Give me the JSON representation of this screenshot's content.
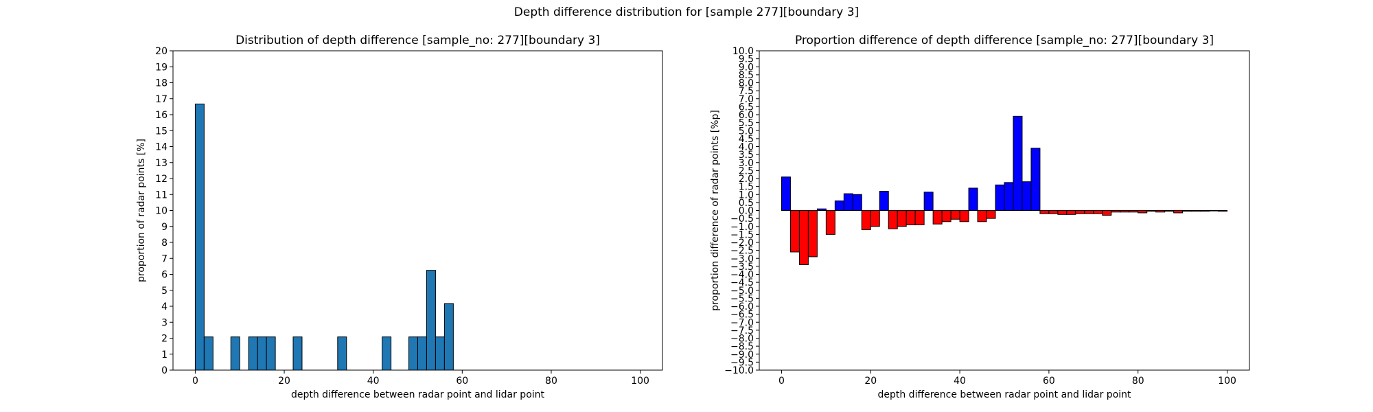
{
  "figure": {
    "suptitle": "Depth difference distribution for [sample 277][boundary 3]"
  },
  "chart_data": [
    {
      "type": "bar",
      "title": "Distribution of depth difference [sample_no: 277][boundary 3]",
      "xlabel": "depth difference between radar point and lidar point",
      "ylabel": "proportion of radar points [%]",
      "xlim": [
        -5,
        105
      ],
      "ylim": [
        0,
        20
      ],
      "xticks": [
        0,
        20,
        40,
        60,
        80,
        100
      ],
      "yticks": [
        0,
        1,
        2,
        3,
        4,
        5,
        6,
        7,
        8,
        9,
        10,
        11,
        12,
        13,
        14,
        15,
        16,
        17,
        18,
        19,
        20
      ],
      "bin_width": 2,
      "bar_color": "#1f77b4",
      "edge_color": "#000000",
      "bars": [
        {
          "x": 0,
          "value": 16.67
        },
        {
          "x": 2,
          "value": 2.08
        },
        {
          "x": 8,
          "value": 2.08
        },
        {
          "x": 12,
          "value": 2.08
        },
        {
          "x": 14,
          "value": 2.08
        },
        {
          "x": 16,
          "value": 2.08
        },
        {
          "x": 22,
          "value": 2.08
        },
        {
          "x": 32,
          "value": 2.08
        },
        {
          "x": 42,
          "value": 2.08
        },
        {
          "x": 48,
          "value": 2.08
        },
        {
          "x": 50,
          "value": 2.08
        },
        {
          "x": 52,
          "value": 6.25
        },
        {
          "x": 54,
          "value": 2.08
        },
        {
          "x": 56,
          "value": 4.17
        }
      ]
    },
    {
      "type": "bar",
      "title": "Proportion difference of depth difference [sample_no: 277][boundary 3]",
      "xlabel": "depth difference between radar point and lidar point",
      "ylabel": "proportion difference of radar points [%p]",
      "xlim": [
        -5,
        105
      ],
      "ylim": [
        -10,
        10
      ],
      "xticks": [
        0,
        20,
        40,
        60,
        80,
        100
      ],
      "yticks": [
        10.0,
        9.5,
        9.0,
        8.5,
        8.0,
        7.5,
        7.0,
        6.5,
        6.0,
        5.5,
        5.0,
        4.5,
        4.0,
        3.5,
        3.0,
        2.5,
        2.0,
        1.5,
        1.0,
        0.5,
        0.0,
        -0.5,
        -1.0,
        -1.5,
        -2.0,
        -2.5,
        -3.0,
        -3.5,
        -4.0,
        -4.5,
        -5.0,
        -5.5,
        -6.0,
        -6.5,
        -7.0,
        -7.5,
        -8.0,
        -8.5,
        -9.0,
        -9.5,
        -10.0
      ],
      "bin_width": 2,
      "positive_color": "#0000ff",
      "negative_color": "#ff0000",
      "edge_color": "#000000",
      "bars": [
        {
          "x": 0,
          "value": 2.1
        },
        {
          "x": 2,
          "value": -2.6
        },
        {
          "x": 4,
          "value": -3.4
        },
        {
          "x": 6,
          "value": -2.9
        },
        {
          "x": 8,
          "value": 0.1
        },
        {
          "x": 10,
          "value": -1.5
        },
        {
          "x": 12,
          "value": 0.6
        },
        {
          "x": 14,
          "value": 1.05
        },
        {
          "x": 16,
          "value": 1.0
        },
        {
          "x": 18,
          "value": -1.2
        },
        {
          "x": 20,
          "value": -1.0
        },
        {
          "x": 22,
          "value": 1.2
        },
        {
          "x": 24,
          "value": -1.15
        },
        {
          "x": 26,
          "value": -1.0
        },
        {
          "x": 28,
          "value": -0.9
        },
        {
          "x": 30,
          "value": -0.9
        },
        {
          "x": 32,
          "value": 1.15
        },
        {
          "x": 34,
          "value": -0.85
        },
        {
          "x": 36,
          "value": -0.7
        },
        {
          "x": 38,
          "value": -0.55
        },
        {
          "x": 40,
          "value": -0.7
        },
        {
          "x": 42,
          "value": 1.4
        },
        {
          "x": 44,
          "value": -0.7
        },
        {
          "x": 46,
          "value": -0.5
        },
        {
          "x": 48,
          "value": 1.6
        },
        {
          "x": 50,
          "value": 1.75
        },
        {
          "x": 52,
          "value": 5.9
        },
        {
          "x": 54,
          "value": 1.8
        },
        {
          "x": 56,
          "value": 3.9
        },
        {
          "x": 58,
          "value": -0.2
        },
        {
          "x": 60,
          "value": -0.2
        },
        {
          "x": 62,
          "value": -0.25
        },
        {
          "x": 64,
          "value": -0.25
        },
        {
          "x": 66,
          "value": -0.2
        },
        {
          "x": 68,
          "value": -0.2
        },
        {
          "x": 70,
          "value": -0.2
        },
        {
          "x": 72,
          "value": -0.3
        },
        {
          "x": 74,
          "value": -0.1
        },
        {
          "x": 76,
          "value": -0.1
        },
        {
          "x": 78,
          "value": -0.1
        },
        {
          "x": 80,
          "value": -0.15
        },
        {
          "x": 82,
          "value": -0.05
        },
        {
          "x": 84,
          "value": -0.1
        },
        {
          "x": 86,
          "value": -0.05
        },
        {
          "x": 88,
          "value": -0.15
        },
        {
          "x": 90,
          "value": -0.05
        },
        {
          "x": 92,
          "value": -0.05
        },
        {
          "x": 94,
          "value": -0.05
        },
        {
          "x": 96,
          "value": -0.03
        },
        {
          "x": 98,
          "value": -0.05
        }
      ]
    }
  ]
}
